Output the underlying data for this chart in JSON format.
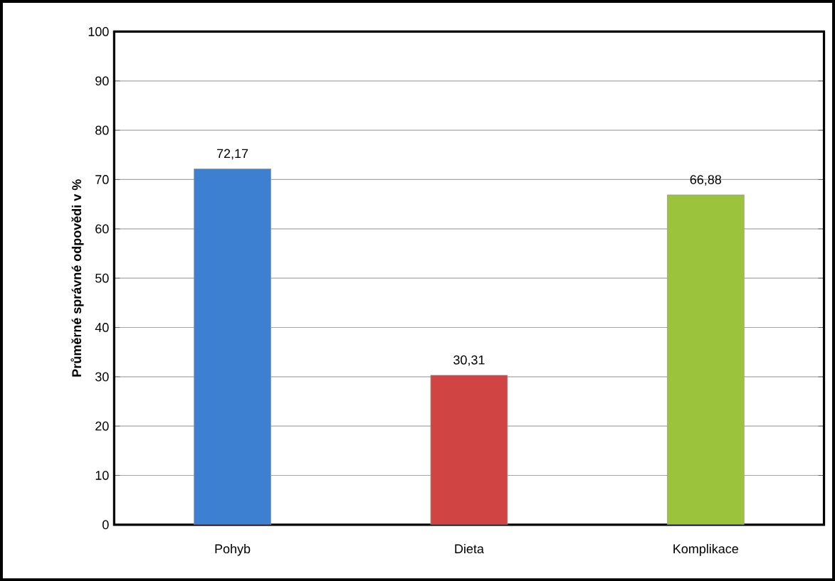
{
  "chart_data": {
    "type": "bar",
    "ylabel": "Průměrné správné odpovědi v %",
    "categories": [
      "Pohyb",
      "Dieta",
      "Komplikace"
    ],
    "values": [
      72.17,
      30.31,
      66.88
    ],
    "colors": [
      "#3d7fd0",
      "#d04444",
      "#9bc43c"
    ],
    "value_labels": [
      "72,17",
      "30,31",
      "66,88"
    ],
    "ylim": [
      0,
      100
    ],
    "yticks": [
      0,
      10,
      20,
      30,
      40,
      50,
      60,
      70,
      80,
      90,
      100
    ],
    "grid": "y"
  }
}
